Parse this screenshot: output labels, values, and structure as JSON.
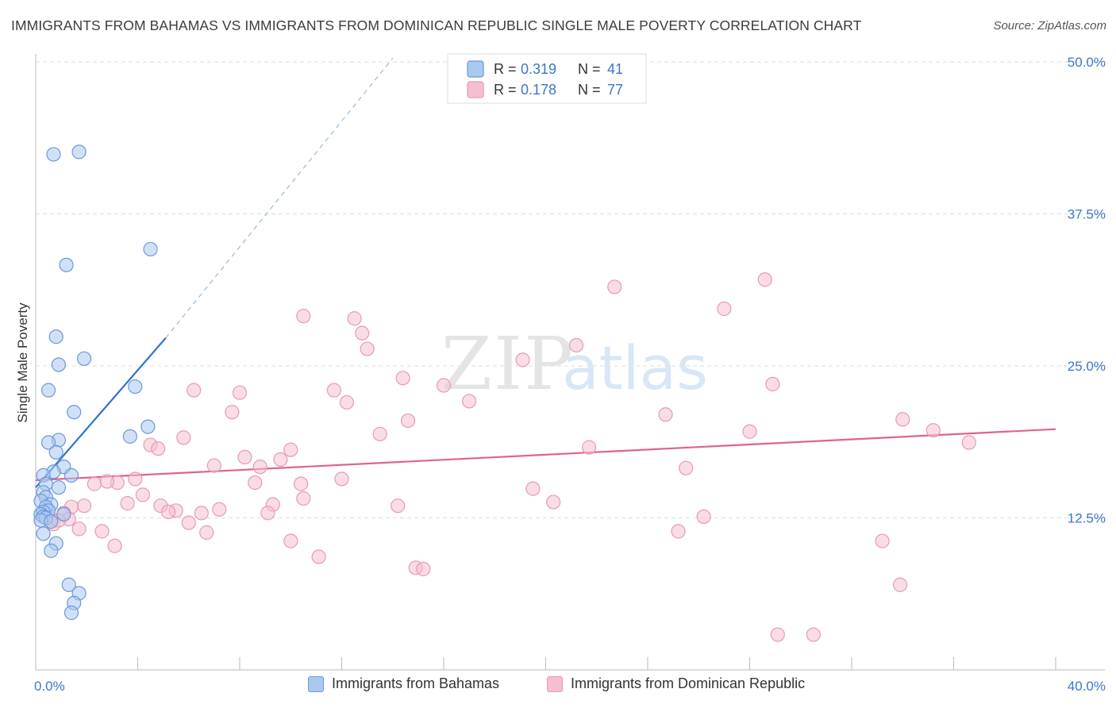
{
  "title": "IMMIGRANTS FROM BAHAMAS VS IMMIGRANTS FROM DOMINICAN REPUBLIC SINGLE MALE POVERTY CORRELATION CHART",
  "source": "Source: ZipAtlas.com",
  "watermark": {
    "zip": "ZIP",
    "atlas": "atlas"
  },
  "colors": {
    "blue_fill": "#a9c9f0",
    "blue_stroke": "#6a9ad8",
    "blue_line": "#2f74d0",
    "pink_fill": "#f6bfd0",
    "pink_stroke": "#e79ab4",
    "pink_line": "#e0628e",
    "tick_label": "#3a78c9",
    "grid": "#dddddd"
  },
  "legend_top": {
    "rows": [
      {
        "r_label": "R =",
        "r_value": "0.319",
        "n_label": "N =",
        "n_value": "41",
        "color": "blue"
      },
      {
        "r_label": "R =",
        "r_value": "0.178",
        "n_label": "N =",
        "n_value": "77",
        "color": "pink"
      }
    ]
  },
  "legend_bottom": [
    {
      "label": "Immigrants from Bahamas",
      "color": "blue"
    },
    {
      "label": "Immigrants from Dominican Republic",
      "color": "pink"
    }
  ],
  "chart_data": {
    "type": "scatter",
    "title": "IMMIGRANTS FROM BAHAMAS VS IMMIGRANTS FROM DOMINICAN REPUBLIC SINGLE MALE POVERTY CORRELATION CHART",
    "xlabel": "",
    "ylabel": "Single Male Poverty",
    "xlim": [
      0,
      40
    ],
    "ylim": [
      0,
      50
    ],
    "x_tick_labels": [
      {
        "value": 0,
        "label": "0.0%"
      },
      {
        "value": 40,
        "label": "40.0%"
      }
    ],
    "y_tick_labels": [
      {
        "value": 12.5,
        "label": "12.5%"
      },
      {
        "value": 25,
        "label": "25.0%"
      },
      {
        "value": 37.5,
        "label": "37.5%"
      },
      {
        "value": 50,
        "label": "50.0%"
      }
    ],
    "grid": true,
    "legend": "top-center",
    "series": [
      {
        "name": "Immigrants from Bahamas",
        "color": "blue",
        "r": 0.319,
        "n": 41,
        "trend": {
          "x": [
            0,
            5.1
          ],
          "y": [
            15.0,
            27.3
          ],
          "dashed_to": [
            14.0,
            50.3
          ]
        },
        "points": [
          [
            0.7,
            42.4
          ],
          [
            1.7,
            42.6
          ],
          [
            4.5,
            34.6
          ],
          [
            1.2,
            33.3
          ],
          [
            0.8,
            27.4
          ],
          [
            1.9,
            25.6
          ],
          [
            0.9,
            25.1
          ],
          [
            3.9,
            23.3
          ],
          [
            0.5,
            23.0
          ],
          [
            1.5,
            21.2
          ],
          [
            4.4,
            20.0
          ],
          [
            3.7,
            19.2
          ],
          [
            0.9,
            18.9
          ],
          [
            0.5,
            18.7
          ],
          [
            0.8,
            17.9
          ],
          [
            1.1,
            16.7
          ],
          [
            0.7,
            16.3
          ],
          [
            0.3,
            16.0
          ],
          [
            1.4,
            16.0
          ],
          [
            0.4,
            15.3
          ],
          [
            0.9,
            15.0
          ],
          [
            0.3,
            14.6
          ],
          [
            0.4,
            14.2
          ],
          [
            0.2,
            13.9
          ],
          [
            0.6,
            13.6
          ],
          [
            0.4,
            13.4
          ],
          [
            0.5,
            13.1
          ],
          [
            0.3,
            13.0
          ],
          [
            0.2,
            12.8
          ],
          [
            1.1,
            12.8
          ],
          [
            0.3,
            12.6
          ],
          [
            0.4,
            12.5
          ],
          [
            0.2,
            12.3
          ],
          [
            0.6,
            12.2
          ],
          [
            0.3,
            11.2
          ],
          [
            0.8,
            10.4
          ],
          [
            0.6,
            9.8
          ],
          [
            1.3,
            7.0
          ],
          [
            1.7,
            6.3
          ],
          [
            1.5,
            5.5
          ],
          [
            1.4,
            4.7
          ]
        ]
      },
      {
        "name": "Immigrants from Dominican Republic",
        "color": "pink",
        "r": 0.178,
        "n": 77,
        "trend": {
          "x": [
            0,
            40
          ],
          "y": [
            15.6,
            19.8
          ]
        },
        "points": [
          [
            28.6,
            32.1
          ],
          [
            22.7,
            31.5
          ],
          [
            27.0,
            29.7
          ],
          [
            10.5,
            29.1
          ],
          [
            12.5,
            28.9
          ],
          [
            12.8,
            27.7
          ],
          [
            21.2,
            26.7
          ],
          [
            13.0,
            26.4
          ],
          [
            19.1,
            25.5
          ],
          [
            14.4,
            24.0
          ],
          [
            16.0,
            23.4
          ],
          [
            28.9,
            23.5
          ],
          [
            6.2,
            23.0
          ],
          [
            8.0,
            22.8
          ],
          [
            11.7,
            23.0
          ],
          [
            12.2,
            22.0
          ],
          [
            17.0,
            22.1
          ],
          [
            7.7,
            21.2
          ],
          [
            24.7,
            21.0
          ],
          [
            14.6,
            20.5
          ],
          [
            34.0,
            20.6
          ],
          [
            35.2,
            19.7
          ],
          [
            28.0,
            19.6
          ],
          [
            13.5,
            19.4
          ],
          [
            5.8,
            19.1
          ],
          [
            36.6,
            18.7
          ],
          [
            4.5,
            18.5
          ],
          [
            4.8,
            18.2
          ],
          [
            21.7,
            18.3
          ],
          [
            10.0,
            18.1
          ],
          [
            8.2,
            17.5
          ],
          [
            9.6,
            17.3
          ],
          [
            8.8,
            16.7
          ],
          [
            7.0,
            16.8
          ],
          [
            25.5,
            16.6
          ],
          [
            12.0,
            15.7
          ],
          [
            3.9,
            15.7
          ],
          [
            3.2,
            15.4
          ],
          [
            2.3,
            15.3
          ],
          [
            2.8,
            15.5
          ],
          [
            8.6,
            15.4
          ],
          [
            10.4,
            15.3
          ],
          [
            19.5,
            14.9
          ],
          [
            4.2,
            14.4
          ],
          [
            10.5,
            14.1
          ],
          [
            20.3,
            13.8
          ],
          [
            3.6,
            13.7
          ],
          [
            9.3,
            13.6
          ],
          [
            14.2,
            13.5
          ],
          [
            1.9,
            13.5
          ],
          [
            1.4,
            13.4
          ],
          [
            4.9,
            13.5
          ],
          [
            5.5,
            13.1
          ],
          [
            7.2,
            13.2
          ],
          [
            5.2,
            13.0
          ],
          [
            1.1,
            12.9
          ],
          [
            9.1,
            12.9
          ],
          [
            6.5,
            12.9
          ],
          [
            26.2,
            12.6
          ],
          [
            1.3,
            12.4
          ],
          [
            0.6,
            12.4
          ],
          [
            6.0,
            12.1
          ],
          [
            0.7,
            12.0
          ],
          [
            1.7,
            11.6
          ],
          [
            2.6,
            11.4
          ],
          [
            6.7,
            11.3
          ],
          [
            25.2,
            11.4
          ],
          [
            10.0,
            10.6
          ],
          [
            33.2,
            10.6
          ],
          [
            3.1,
            10.2
          ],
          [
            11.1,
            9.3
          ],
          [
            14.9,
            8.4
          ],
          [
            15.2,
            8.3
          ],
          [
            33.9,
            7.0
          ],
          [
            29.1,
            2.9
          ],
          [
            30.5,
            2.9
          ],
          [
            0.9,
            12.3
          ]
        ]
      }
    ]
  }
}
